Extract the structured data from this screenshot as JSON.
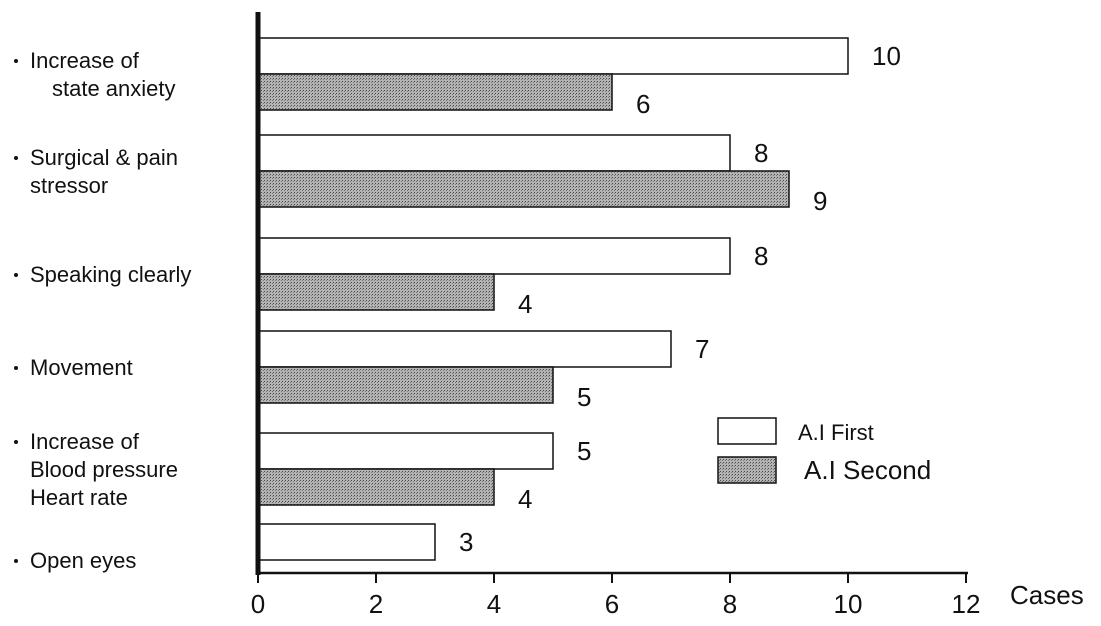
{
  "chart_data": {
    "type": "bar",
    "orientation": "horizontal",
    "categories": [
      [
        "Increase of",
        "state anxiety"
      ],
      [
        "Surgical & pain",
        "stressor"
      ],
      [
        "Speaking clearly"
      ],
      [
        "Movement"
      ],
      [
        "Increase of",
        "Blood pressure",
        "Heart rate"
      ],
      [
        "Open eyes"
      ]
    ],
    "series": [
      {
        "name": "A.I First",
        "values": [
          10,
          8,
          8,
          7,
          5,
          3
        ],
        "color": "#ffffff"
      },
      {
        "name": "A.I Second",
        "values": [
          6,
          9,
          4,
          5,
          4,
          null
        ],
        "color": "#a8a8a8"
      }
    ],
    "xlabel": "Cases",
    "xlim": [
      0,
      12
    ],
    "xticks": [
      0,
      2,
      4,
      6,
      8,
      10,
      12
    ],
    "legend_position": "right",
    "grid": false
  }
}
